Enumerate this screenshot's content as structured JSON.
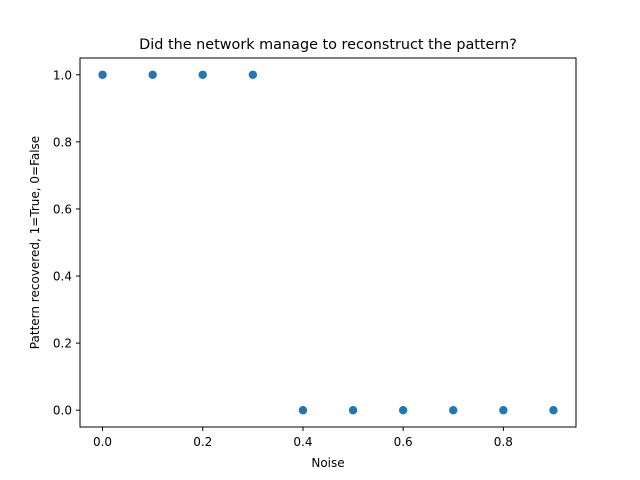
{
  "chart_data": {
    "type": "scatter",
    "title": "Did the network manage to reconstruct the pattern?",
    "xlabel": "Noise",
    "ylabel": "Pattern recovered, 1=True, 0=False",
    "x": [
      0.0,
      0.1,
      0.2,
      0.3,
      0.4,
      0.5,
      0.6,
      0.7,
      0.8,
      0.9
    ],
    "y": [
      1,
      1,
      1,
      1,
      0,
      0,
      0,
      0,
      0,
      0
    ],
    "xlim": [
      -0.045,
      0.945
    ],
    "ylim": [
      -0.05,
      1.05
    ],
    "xticks": [
      0.0,
      0.2,
      0.4,
      0.6,
      0.8
    ],
    "xtick_labels": [
      "0.0",
      "0.2",
      "0.4",
      "0.6",
      "0.8"
    ],
    "yticks": [
      0.0,
      0.2,
      0.4,
      0.6,
      0.8,
      1.0
    ],
    "ytick_labels": [
      "0.0",
      "0.2",
      "0.4",
      "0.6",
      "0.8",
      "1.0"
    ],
    "grid": false,
    "marker_color": "#1f77b4"
  }
}
